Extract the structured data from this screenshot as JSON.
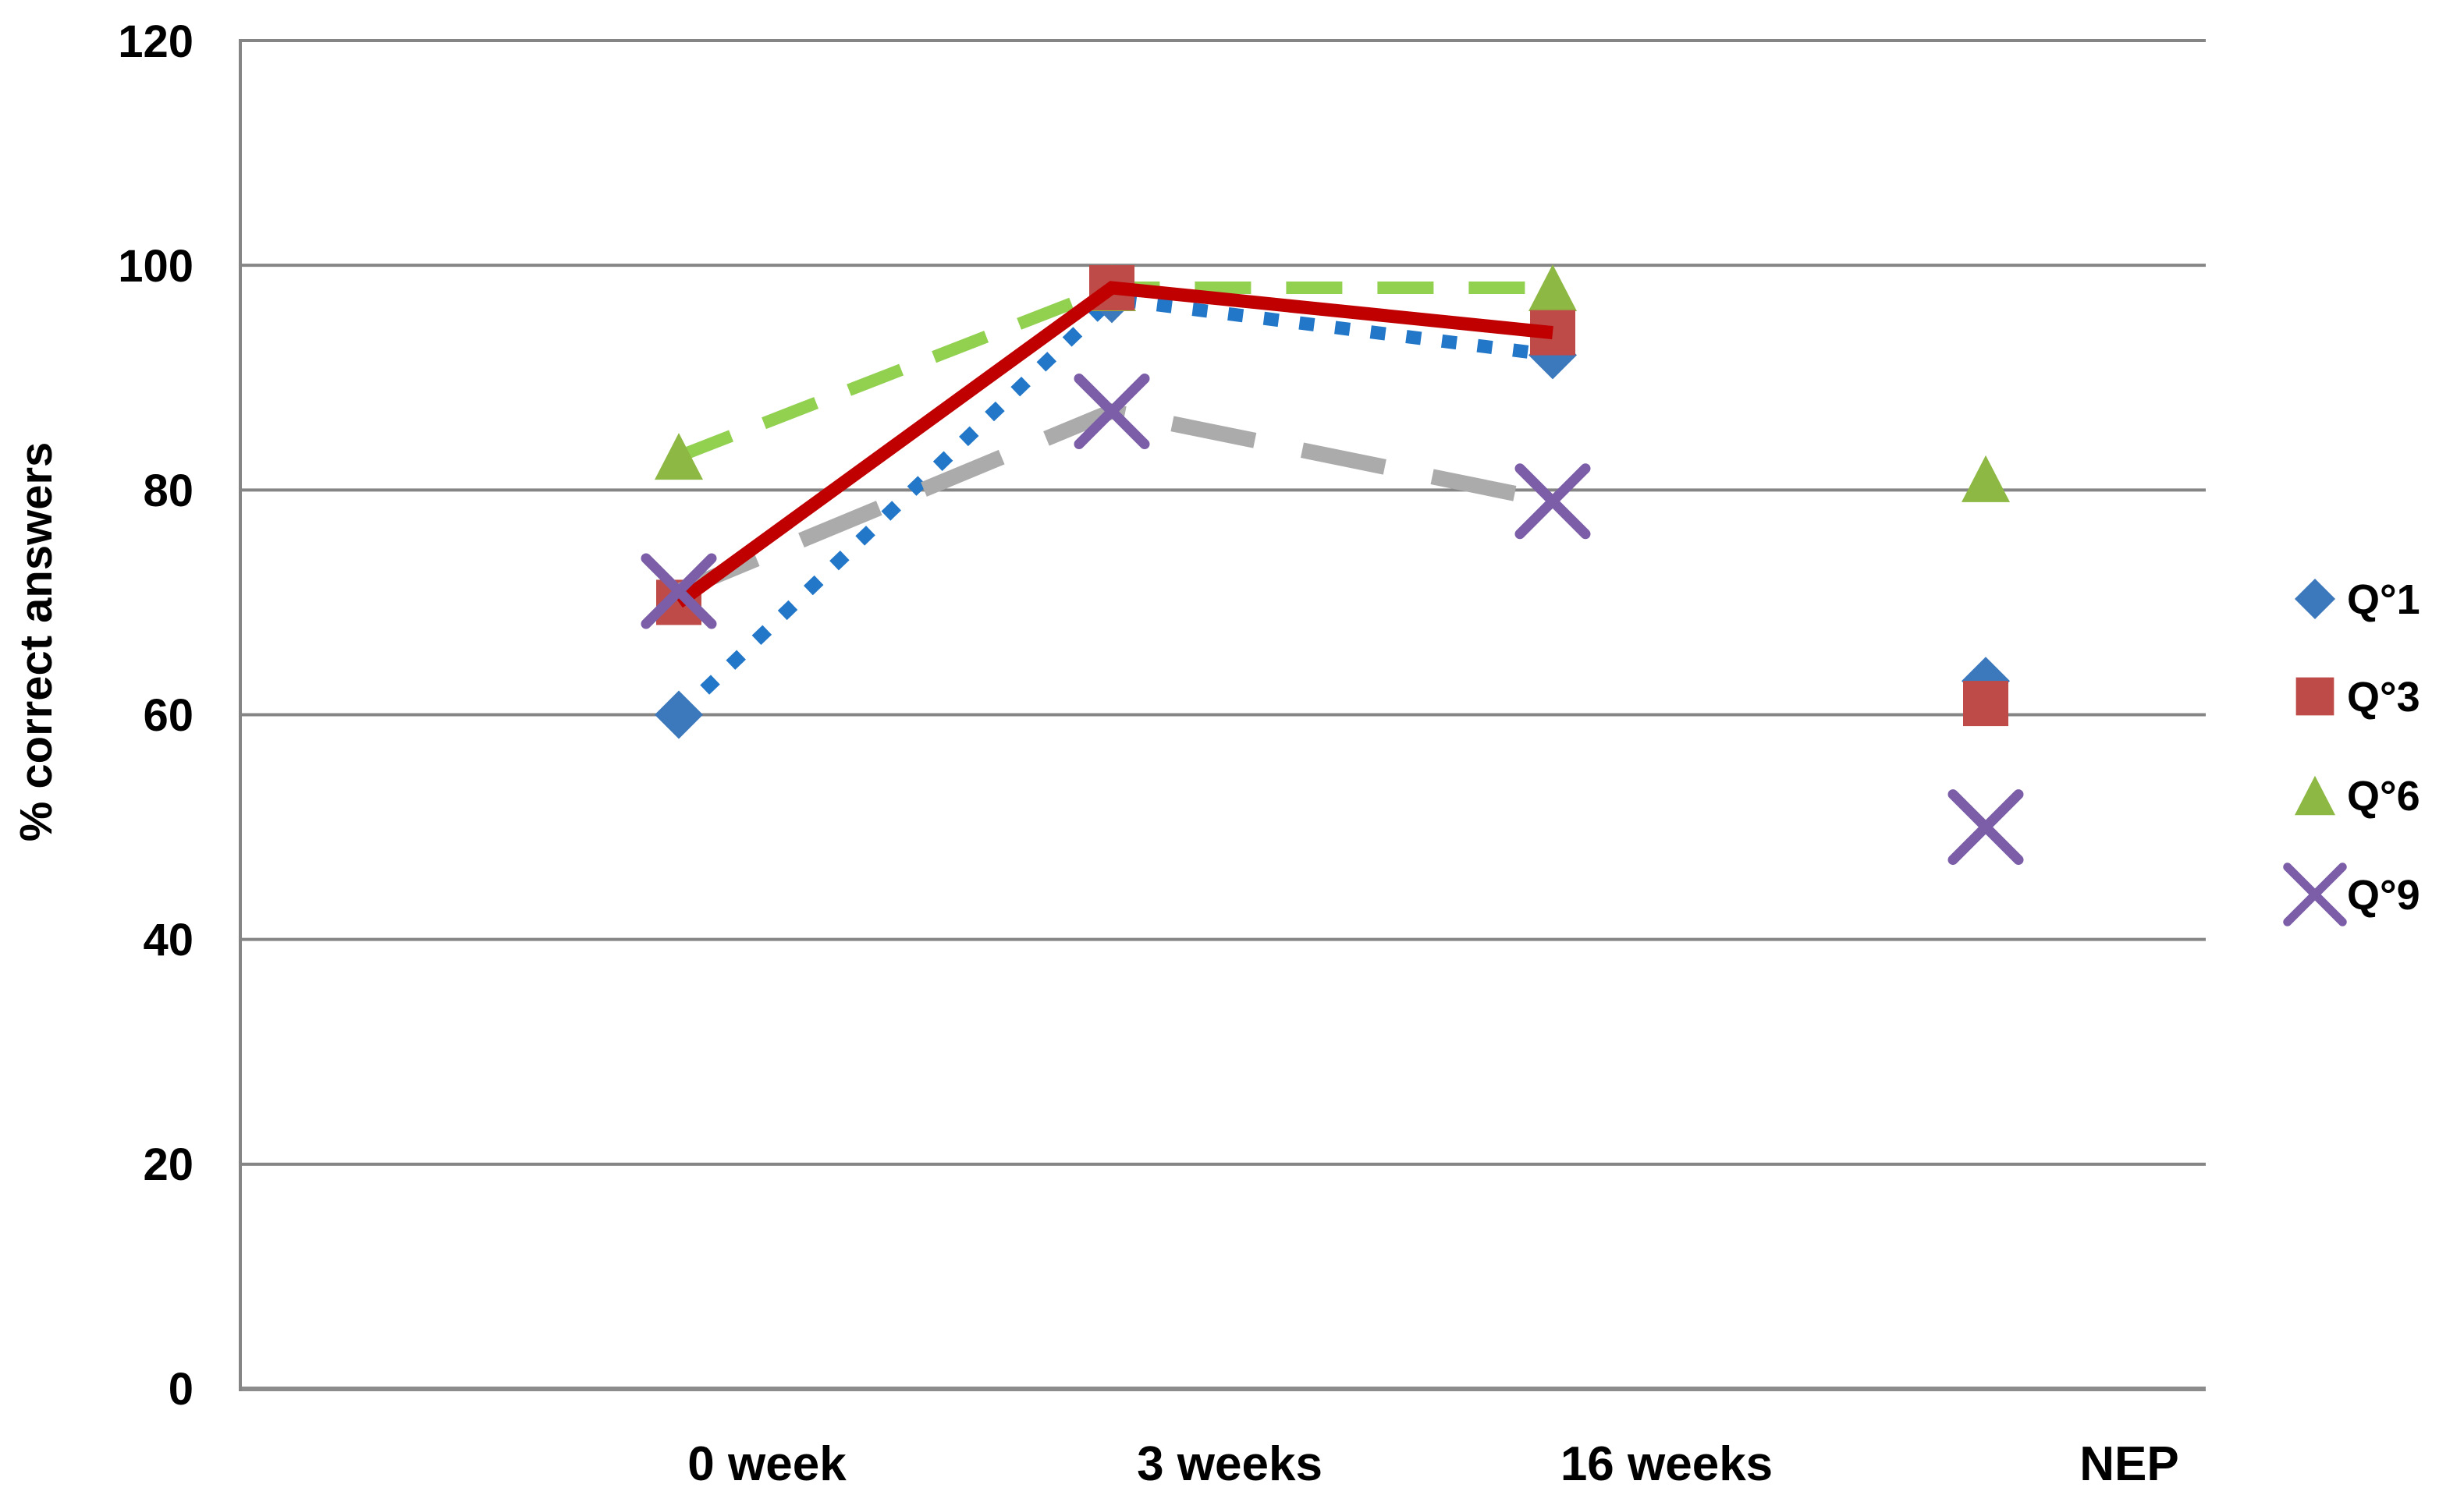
{
  "chart_data": {
    "type": "line",
    "title": "",
    "ylabel": "% correct answers",
    "xlabel": "",
    "categories": [
      "0 week",
      "3 weeks",
      "16 weeks",
      "NEP"
    ],
    "ylim": [
      0,
      120
    ],
    "y_ticks": [
      120,
      100,
      80,
      60,
      40,
      20,
      0
    ],
    "grid": "horizontal",
    "legend_position": "right",
    "line_connects_first_n_points": 3,
    "nep_points_isolated": true,
    "series": [
      {
        "name": "Q°1",
        "marker": "diamond",
        "marker_color": "#3C78BC",
        "line_color": "#2277C8",
        "line_style": "dotted",
        "values": [
          60,
          97,
          92,
          63
        ]
      },
      {
        "name": "Q°3",
        "marker": "square",
        "marker_color": "#BE4B48",
        "line_color": "#C00000",
        "line_style": "solid",
        "values": [
          70,
          98,
          94,
          61
        ]
      },
      {
        "name": "Q°6",
        "marker": "triangle",
        "marker_color": "#8DB843",
        "line_color": "#92D050",
        "line_style": "dashed",
        "values": [
          83,
          98,
          98,
          81
        ]
      },
      {
        "name": "Q°9",
        "marker": "x",
        "marker_color": "#7B5EA7",
        "line_color": "#ABABAB",
        "line_style": "long-dash",
        "values": [
          71,
          87,
          79,
          50
        ]
      }
    ]
  },
  "styles": {
    "gridline_color": "#858585",
    "axis_line_color": "#8C8C8C",
    "axis_text_color": "#000000",
    "background_color": "#FFFFFF"
  }
}
